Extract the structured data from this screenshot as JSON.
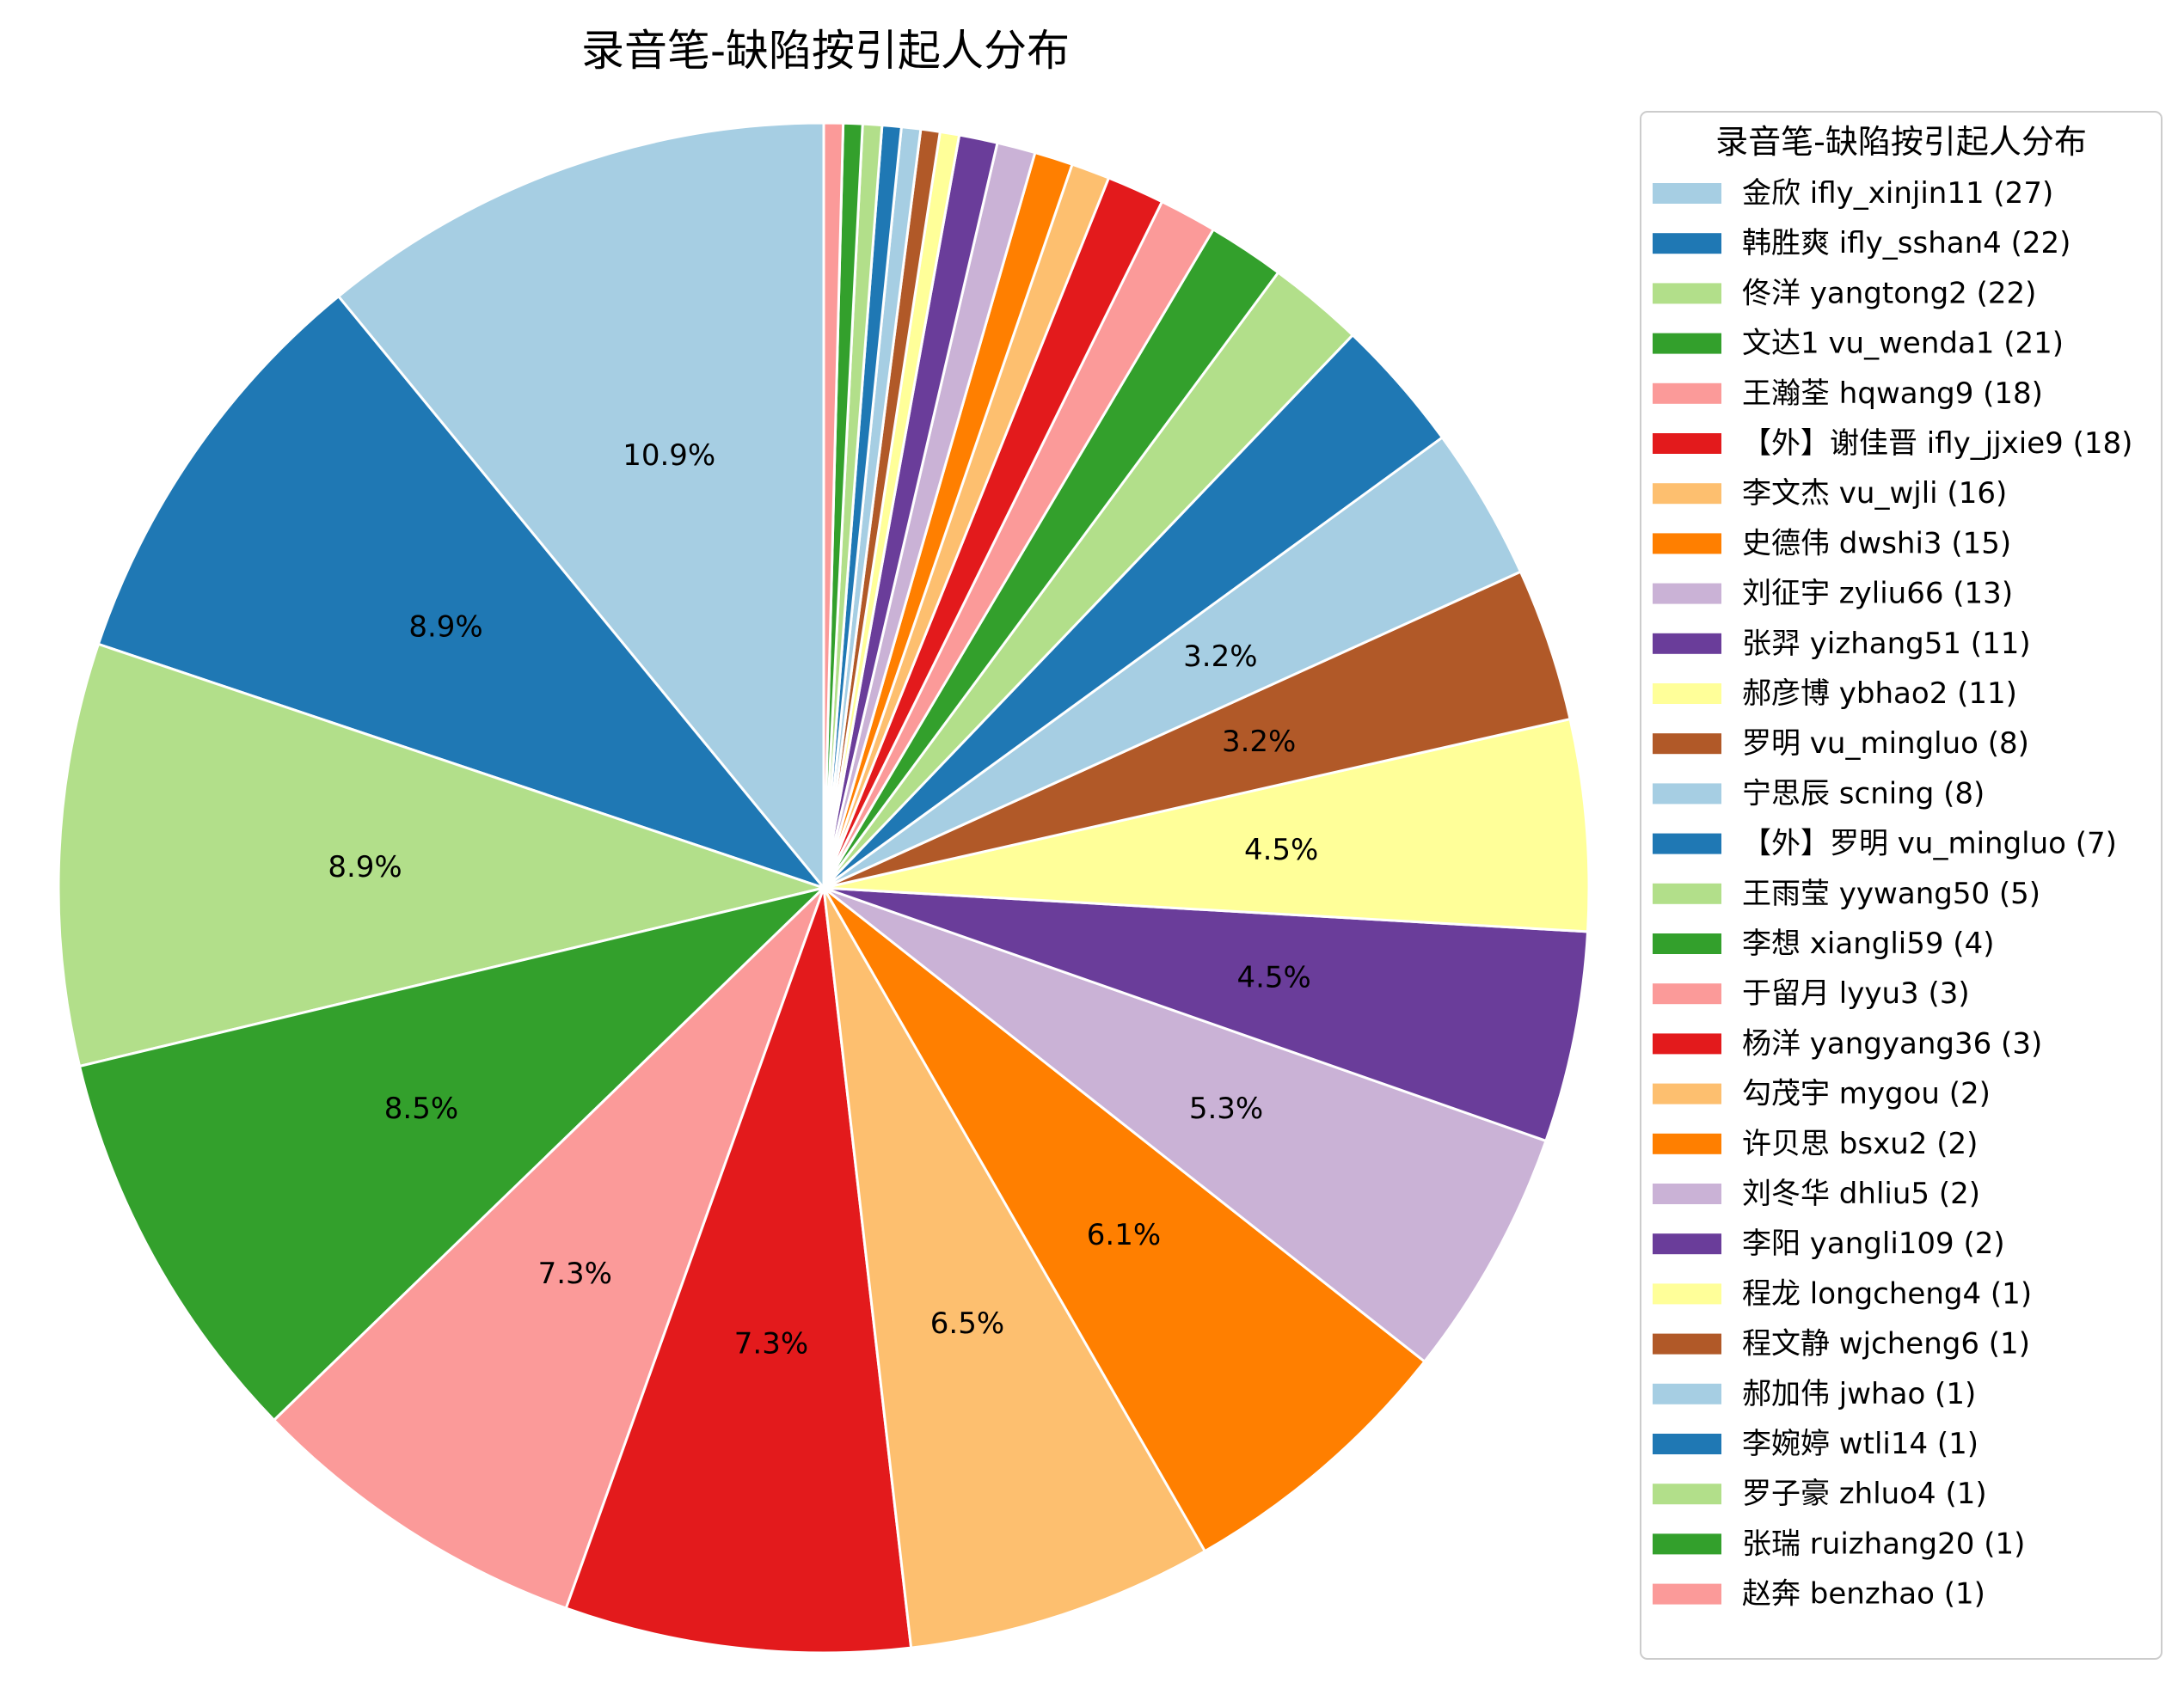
{
  "chart_data": {
    "type": "pie",
    "title": "录音笔-缺陷按引起人分布",
    "legend_title": "录音笔-缺陷按引起人分布",
    "legend_position": "right",
    "start_angle": 90,
    "direction": "counterclockwise",
    "label_min_pct": 3.0,
    "palette": [
      "#a6cee3",
      "#1f78b4",
      "#b2df8a",
      "#33a02c",
      "#fb9a99",
      "#e31a1c",
      "#fdbf6f",
      "#ff7f00",
      "#cab2d6",
      "#6a3d9a",
      "#ffff99",
      "#b15928"
    ],
    "slices": [
      {
        "label": "金欣 ifly_xinjin11",
        "value": 27,
        "legend": "金欣 ifly_xinjin11 (27)"
      },
      {
        "label": "韩胜爽 ifly_sshan4",
        "value": 22,
        "legend": "韩胜爽 ifly_sshan4 (22)"
      },
      {
        "label": "佟洋 yangtong2",
        "value": 22,
        "legend": "佟洋 yangtong2 (22)"
      },
      {
        "label": "文达1 vu_wenda1",
        "value": 21,
        "legend": "文达1 vu_wenda1 (21)"
      },
      {
        "label": "王瀚荃 hqwang9",
        "value": 18,
        "legend": "王瀚荃 hqwang9 (18)"
      },
      {
        "label": "【外】谢佳晋 ifly_jjxie9",
        "value": 18,
        "legend": "【外】谢佳晋 ifly_jjxie9 (18)"
      },
      {
        "label": "李文杰 vu_wjli",
        "value": 16,
        "legend": "李文杰 vu_wjli (16)"
      },
      {
        "label": "史德伟 dwshi3",
        "value": 15,
        "legend": "史德伟 dwshi3 (15)"
      },
      {
        "label": "刘征宇 zyliu66",
        "value": 13,
        "legend": "刘征宇 zyliu66 (13)"
      },
      {
        "label": "张羿 yizhang51",
        "value": 11,
        "legend": "张羿 yizhang51 (11)"
      },
      {
        "label": "郝彦博 ybhao2",
        "value": 11,
        "legend": "郝彦博 ybhao2 (11)"
      },
      {
        "label": "罗明 vu_mingluo",
        "value": 8,
        "legend": "罗明 vu_mingluo (8)"
      },
      {
        "label": "宁思辰 scning",
        "value": 8,
        "legend": "宁思辰 scning (8)"
      },
      {
        "label": "【外】罗明 vu_mingluo",
        "value": 7,
        "legend": "【外】罗明 vu_mingluo (7)"
      },
      {
        "label": "王雨莹 yywang50",
        "value": 5,
        "legend": "王雨莹 yywang50 (5)"
      },
      {
        "label": "李想 xiangli59",
        "value": 4,
        "legend": "李想 xiangli59 (4)"
      },
      {
        "label": "于留月 lyyu3",
        "value": 3,
        "legend": "于留月 lyyu3 (3)"
      },
      {
        "label": "杨洋 yangyang36",
        "value": 3,
        "legend": "杨洋 yangyang36 (3)"
      },
      {
        "label": "勾茂宇 mygou",
        "value": 2,
        "legend": "勾茂宇 mygou (2)"
      },
      {
        "label": "许贝思 bsxu2",
        "value": 2,
        "legend": "许贝思 bsxu2 (2)"
      },
      {
        "label": "刘冬华 dhliu5",
        "value": 2,
        "legend": "刘冬华 dhliu5 (2)"
      },
      {
        "label": "李阳 yangli109",
        "value": 2,
        "legend": "李阳 yangli109 (2)"
      },
      {
        "label": "程龙 longcheng4",
        "value": 1,
        "legend": "程龙 longcheng4 (1)"
      },
      {
        "label": "程文静 wjcheng6",
        "value": 1,
        "legend": "程文静 wjcheng6 (1)"
      },
      {
        "label": "郝加伟 jwhao",
        "value": 1,
        "legend": "郝加伟 jwhao (1)"
      },
      {
        "label": "李婉婷 wtli14",
        "value": 1,
        "legend": "李婉婷 wtli14 (1)"
      },
      {
        "label": "罗子豪 zhluo4",
        "value": 1,
        "legend": "罗子豪 zhluo4 (1)"
      },
      {
        "label": "张瑞 ruizhang20",
        "value": 1,
        "legend": "张瑞 ruizhang20 (1)"
      },
      {
        "label": "赵奔 benzhao",
        "value": 1,
        "legend": "赵奔 benzhao (1)"
      }
    ]
  }
}
